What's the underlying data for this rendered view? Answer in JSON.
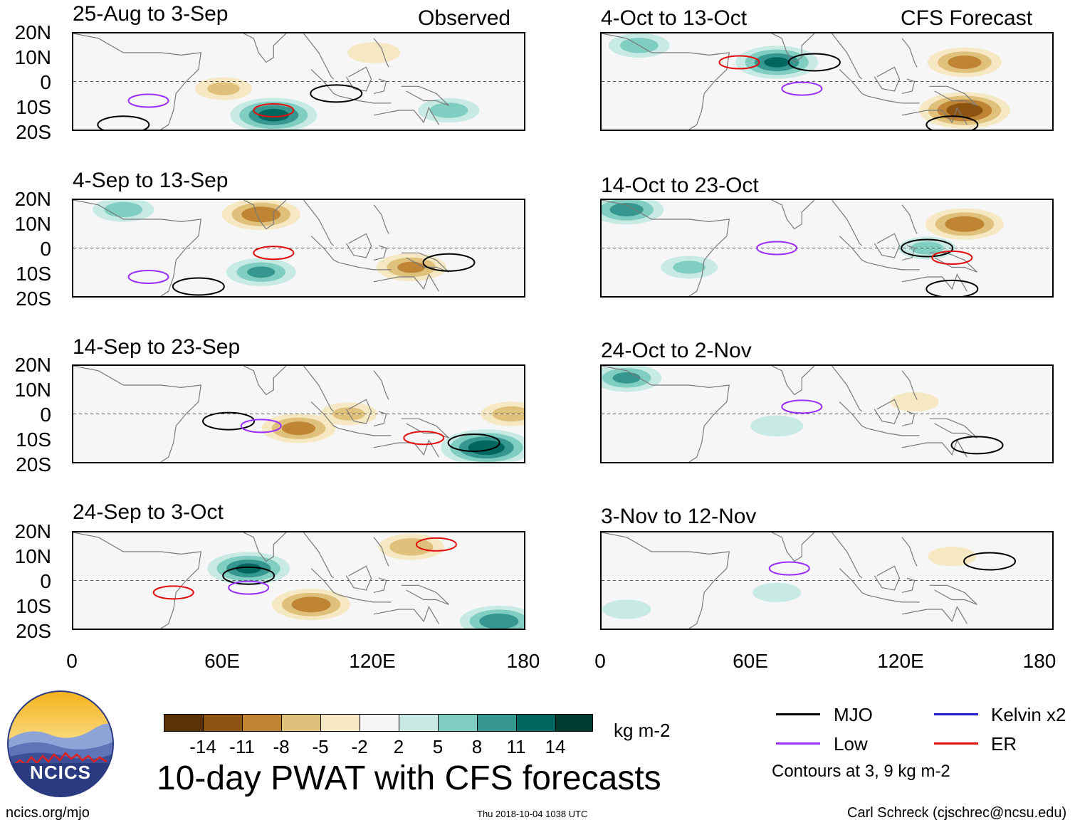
{
  "headers": {
    "left": "Observed",
    "right": "CFS Forecast"
  },
  "panels": [
    {
      "title": "25-Aug to 3-Sep"
    },
    {
      "title": "4-Sep to 13-Sep"
    },
    {
      "title": "14-Sep to 23-Sep"
    },
    {
      "title": "24-Sep to 3-Oct"
    },
    {
      "title": "4-Oct to 13-Oct"
    },
    {
      "title": "14-Oct to 23-Oct"
    },
    {
      "title": "24-Oct to 2-Nov"
    },
    {
      "title": "3-Nov to 12-Nov"
    }
  ],
  "lat_labels": [
    "20N",
    "10N",
    "0",
    "10S",
    "20S"
  ],
  "lon_labels": [
    "0",
    "60E",
    "120E",
    "180"
  ],
  "colorbar": {
    "ticks": [
      "-14",
      "-11",
      "-8",
      "-5",
      "-2",
      "2",
      "5",
      "8",
      "11",
      "14"
    ],
    "colors": [
      "#5a3206",
      "#8c5410",
      "#bf8434",
      "#dfc17c",
      "#f6e8c3",
      "#f6f6f6",
      "#c7eae5",
      "#80cdc1",
      "#35978f",
      "#01665e",
      "#003c30"
    ],
    "unit": "kg m-2"
  },
  "legend": {
    "items": [
      {
        "label": "MJO",
        "color": "#000000"
      },
      {
        "label": "Kelvin x2",
        "color": "#1f1fd0"
      },
      {
        "label": "Low",
        "color": "#9b30ff"
      },
      {
        "label": "ER",
        "color": "#e01010"
      }
    ],
    "note": "Contours at 3, 9 kg m-2"
  },
  "logo": {
    "text": "NCICS"
  },
  "main_title": "10-day PWAT with CFS forecasts",
  "footer": {
    "url": "ncics.org/mjo",
    "timestamp": "Thu 2018-10-04 1038 UTC",
    "credit": "Carl Schreck (cjschrec@ncsu.edu)"
  },
  "chart_data": {
    "type": "heatmap",
    "title": "10-day PWAT with CFS forecasts",
    "variable": "PWAT anomaly (kg m-2)",
    "lon_range": [
      0,
      180
    ],
    "lat_range": [
      -20,
      20
    ],
    "xticks": [
      "0",
      "60E",
      "120E",
      "180"
    ],
    "yticks": [
      "20N",
      "10N",
      "0",
      "10S",
      "20S"
    ],
    "contour_levels": [
      3,
      9
    ],
    "panels": [
      {
        "period": "25-Aug to 3-Sep",
        "source": "Observed",
        "anomalies": [
          {
            "lon": 80,
            "lat": -14,
            "value": 12
          },
          {
            "lon": 150,
            "lat": -12,
            "value": 6
          },
          {
            "lon": 120,
            "lat": 12,
            "value": -4
          },
          {
            "lon": 60,
            "lat": -3,
            "value": -5
          }
        ],
        "waves": [
          {
            "type": "MJO",
            "lon": 105,
            "lat": -5
          },
          {
            "type": "MJO",
            "lon": 20,
            "lat": -18
          },
          {
            "type": "ER",
            "lon": 80,
            "lat": -12
          },
          {
            "type": "Low",
            "lon": 30,
            "lat": -8
          }
        ]
      },
      {
        "period": "4-Sep to 13-Sep",
        "source": "Observed",
        "anomalies": [
          {
            "lon": 75,
            "lat": 14,
            "value": -10
          },
          {
            "lon": 75,
            "lat": -10,
            "value": 8
          },
          {
            "lon": 135,
            "lat": -8,
            "value": -8
          },
          {
            "lon": 20,
            "lat": 16,
            "value": 6
          }
        ],
        "waves": [
          {
            "type": "MJO",
            "lon": 50,
            "lat": -16
          },
          {
            "type": "MJO",
            "lon": 150,
            "lat": -6
          },
          {
            "type": "ER",
            "lon": 80,
            "lat": -2
          },
          {
            "type": "Low",
            "lon": 30,
            "lat": -12
          }
        ]
      },
      {
        "period": "14-Sep to 23-Sep",
        "source": "Observed",
        "anomalies": [
          {
            "lon": 165,
            "lat": -14,
            "value": 13
          },
          {
            "lon": 90,
            "lat": -6,
            "value": -9
          },
          {
            "lon": 175,
            "lat": 0,
            "value": -6
          },
          {
            "lon": 110,
            "lat": 0,
            "value": -5
          }
        ],
        "waves": [
          {
            "type": "MJO",
            "lon": 160,
            "lat": -12
          },
          {
            "type": "MJO",
            "lon": 62,
            "lat": -3
          },
          {
            "type": "ER",
            "lon": 140,
            "lat": -10
          },
          {
            "type": "Low",
            "lon": 75,
            "lat": -5
          }
        ]
      },
      {
        "period": "24-Sep to 3-Oct",
        "source": "Observed",
        "anomalies": [
          {
            "lon": 70,
            "lat": 5,
            "value": 11
          },
          {
            "lon": 95,
            "lat": -10,
            "value": -10
          },
          {
            "lon": 135,
            "lat": 14,
            "value": -7
          },
          {
            "lon": 170,
            "lat": -17,
            "value": 10
          }
        ],
        "waves": [
          {
            "type": "MJO",
            "lon": 70,
            "lat": 2
          },
          {
            "type": "ER",
            "lon": 145,
            "lat": 15
          },
          {
            "type": "Low",
            "lon": 70,
            "lat": -3
          },
          {
            "type": "ER",
            "lon": 40,
            "lat": -5
          }
        ]
      },
      {
        "period": "4-Oct to 13-Oct",
        "source": "CFS Forecast",
        "anomalies": [
          {
            "lon": 145,
            "lat": -12,
            "value": -13
          },
          {
            "lon": 145,
            "lat": 8,
            "value": -9
          },
          {
            "lon": 70,
            "lat": 8,
            "value": 11
          },
          {
            "lon": 15,
            "lat": 15,
            "value": 6
          }
        ],
        "waves": [
          {
            "type": "MJO",
            "lon": 85,
            "lat": 8
          },
          {
            "type": "ER",
            "lon": 55,
            "lat": 8
          },
          {
            "type": "Low",
            "lon": 80,
            "lat": -3
          },
          {
            "type": "MJO",
            "lon": 140,
            "lat": -18
          }
        ]
      },
      {
        "period": "14-Oct to 23-Oct",
        "source": "CFS Forecast",
        "anomalies": [
          {
            "lon": 145,
            "lat": 10,
            "value": -10
          },
          {
            "lon": 10,
            "lat": 16,
            "value": 9
          },
          {
            "lon": 35,
            "lat": -8,
            "value": 5
          },
          {
            "lon": 130,
            "lat": 0,
            "value": 5
          }
        ],
        "waves": [
          {
            "type": "MJO",
            "lon": 130,
            "lat": 0
          },
          {
            "type": "ER",
            "lon": 140,
            "lat": -4
          },
          {
            "type": "Low",
            "lon": 70,
            "lat": 0
          },
          {
            "type": "MJO",
            "lon": 140,
            "lat": -17
          }
        ]
      },
      {
        "period": "24-Oct to 2-Nov",
        "source": "CFS Forecast",
        "anomalies": [
          {
            "lon": 10,
            "lat": 15,
            "value": 8
          },
          {
            "lon": 70,
            "lat": -5,
            "value": 4
          },
          {
            "lon": 125,
            "lat": 5,
            "value": -3
          }
        ],
        "waves": [
          {
            "type": "Low",
            "lon": 80,
            "lat": 3
          },
          {
            "type": "MJO",
            "lon": 150,
            "lat": -13
          }
        ]
      },
      {
        "period": "3-Nov to 12-Nov",
        "source": "CFS Forecast",
        "anomalies": [
          {
            "lon": 140,
            "lat": 10,
            "value": -3
          },
          {
            "lon": 10,
            "lat": -12,
            "value": 3
          },
          {
            "lon": 70,
            "lat": -5,
            "value": 3
          }
        ],
        "waves": [
          {
            "type": "MJO",
            "lon": 155,
            "lat": 8
          },
          {
            "type": "Low",
            "lon": 75,
            "lat": 5
          }
        ]
      }
    ]
  }
}
